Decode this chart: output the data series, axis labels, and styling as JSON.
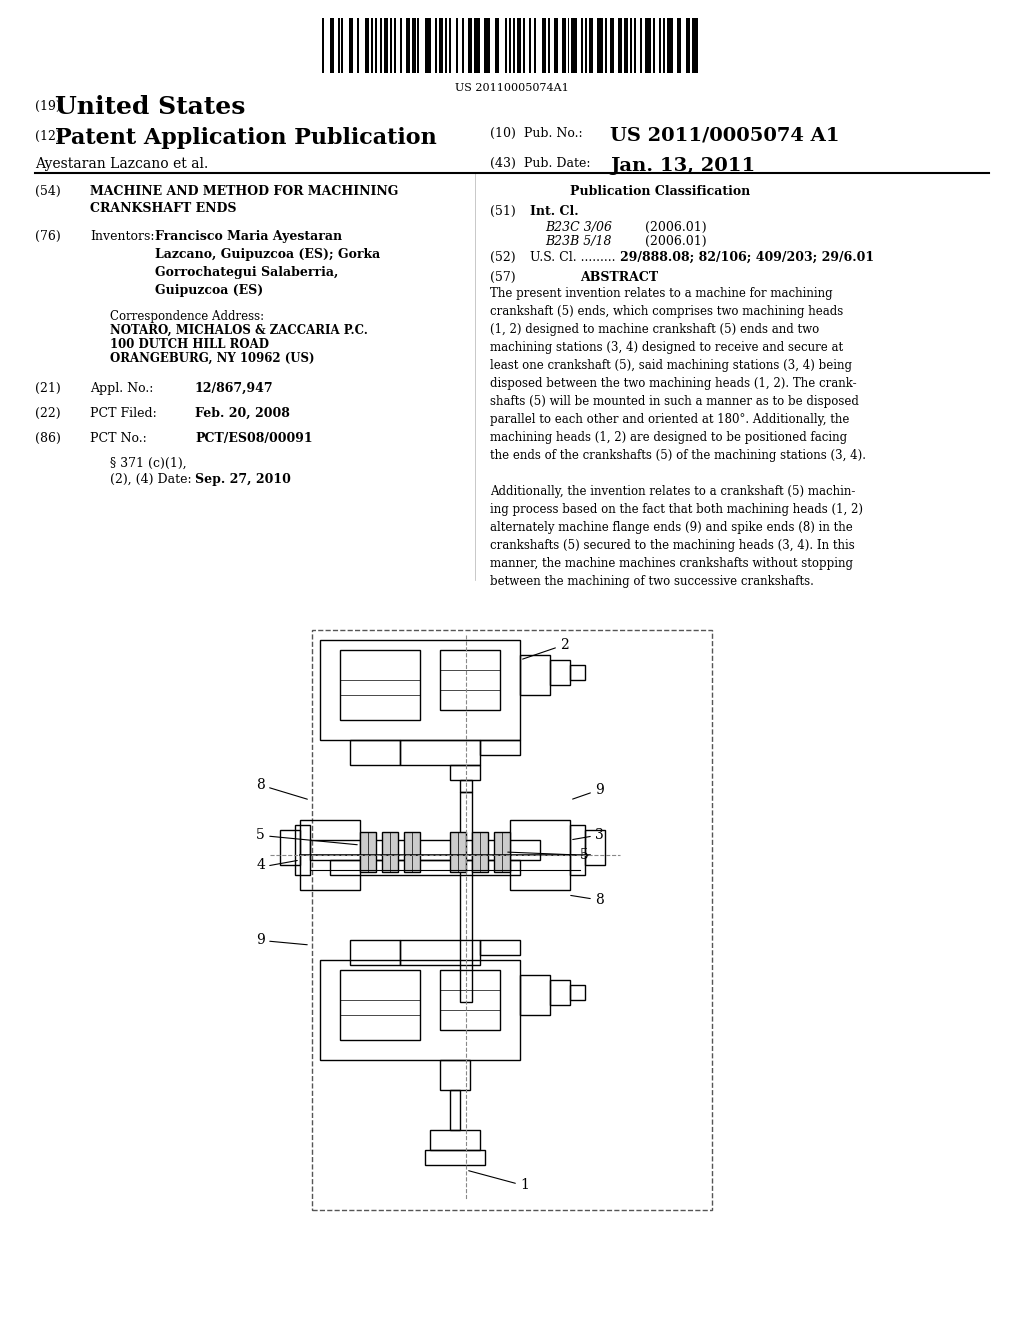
{
  "bg_color": "#ffffff",
  "barcode_text": "US 20110005074A1",
  "patent_number_label": "(19)",
  "patent_title": "United States",
  "pub_label": "(12)",
  "pub_title": "Patent Application Publication",
  "pub_no_label": "(10)  Pub. No.:",
  "pub_no": "US 2011/0005074 A1",
  "inventor_label": "(43)  Pub. Date:",
  "pub_date": "Jan. 13, 2011",
  "applicant": "Ayestaran Lazcano et al.",
  "title_label": "(54)",
  "title_text": "MACHINE AND METHOD FOR MACHINING\nCRANKSHAFT ENDS",
  "inventors_label": "(76)",
  "inventors_heading": "Inventors:",
  "inventors_text": "Francisco Maria Ayestaran\nLazcano, Guipuzcoa (ES); Gorka\nGorrochategui Salaberria,\nGuipuzcoa (ES)",
  "corr_heading": "Correspondence Address:",
  "corr_line1": "NOTARO, MICHALOS & ZACCARIA P.C.",
  "corr_line2": "100 DUTCH HILL ROAD",
  "corr_line3": "ORANGEBURG, NY 10962 (US)",
  "appl_label": "(21)",
  "appl_heading": "Appl. No.:",
  "appl_no": "12/867,947",
  "pct_filed_label": "(22)",
  "pct_filed_heading": "PCT Filed:",
  "pct_filed_date": "Feb. 20, 2008",
  "pct_no_label": "(86)",
  "pct_no_heading": "PCT No.:",
  "pct_no": "PCT/ES08/00091",
  "sec371_line1": "§ 371 (c)(1),",
  "sec371_line2": "(2), (4) Date:",
  "sec371_date": "Sep. 27, 2010",
  "pub_class_heading": "Publication Classification",
  "int_cl_label": "(51)",
  "int_cl_heading": "Int. Cl.",
  "int_cl_1": "B23C 3/06",
  "int_cl_1_year": "(2006.01)",
  "int_cl_2": "B23B 5/18",
  "int_cl_2_year": "(2006.01)",
  "us_cl_label": "(52)",
  "us_cl_heading": "U.S. Cl.",
  "us_cl_text": "29/888.08; 82/106; 409/203; 29/6.01",
  "abstract_label": "(57)",
  "abstract_heading": "ABSTRACT",
  "abstract_text": "The present invention relates to a machine for machining\ncrankshaft (5) ends, which comprises two machining heads\n(1, 2) designed to machine crankshaft (5) ends and two\nmachining stations (3, 4) designed to receive and secure at\nleast one crankshaft (5), said machining stations (3, 4) being\ndisposed between the two machining heads (1, 2). The crank-\nshafts (5) will be mounted in such a manner as to be disposed\nparallel to each other and oriented at 180°. Additionally, the\nmachining heads (1, 2) are designed to be positioned facing\nthe ends of the crankshafts (5) of the machining stations (3, 4).\n\nAdditionally, the invention relates to a crankshaft (5) machin-\ning process based on the fact that both machining heads (1, 2)\nalternately machine flange ends (9) and spike ends (8) in the\ncrankshafts (5) secured to the machining heads (3, 4). In this\nmanner, the machine machines crankshafts without stopping\nbetween the machining of two successive crankshafts."
}
